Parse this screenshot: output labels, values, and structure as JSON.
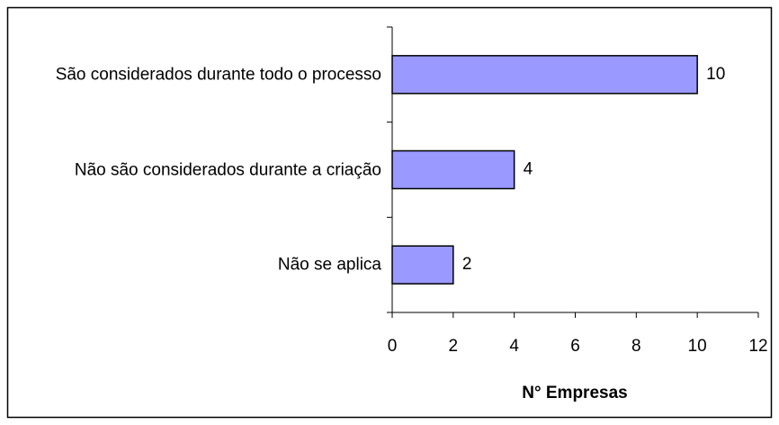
{
  "chart_data": {
    "type": "bar",
    "orientation": "horizontal",
    "categories": [
      "São considerados durante todo o processo",
      "Não são considerados durante a criação",
      "Não se aplica"
    ],
    "values": [
      10,
      4,
      2
    ],
    "color": "#9999ff",
    "xlabel": "N° Empresas",
    "xlim": [
      0,
      12
    ],
    "xticks": [
      0,
      2,
      4,
      6,
      8,
      10,
      12
    ],
    "grid": false
  }
}
